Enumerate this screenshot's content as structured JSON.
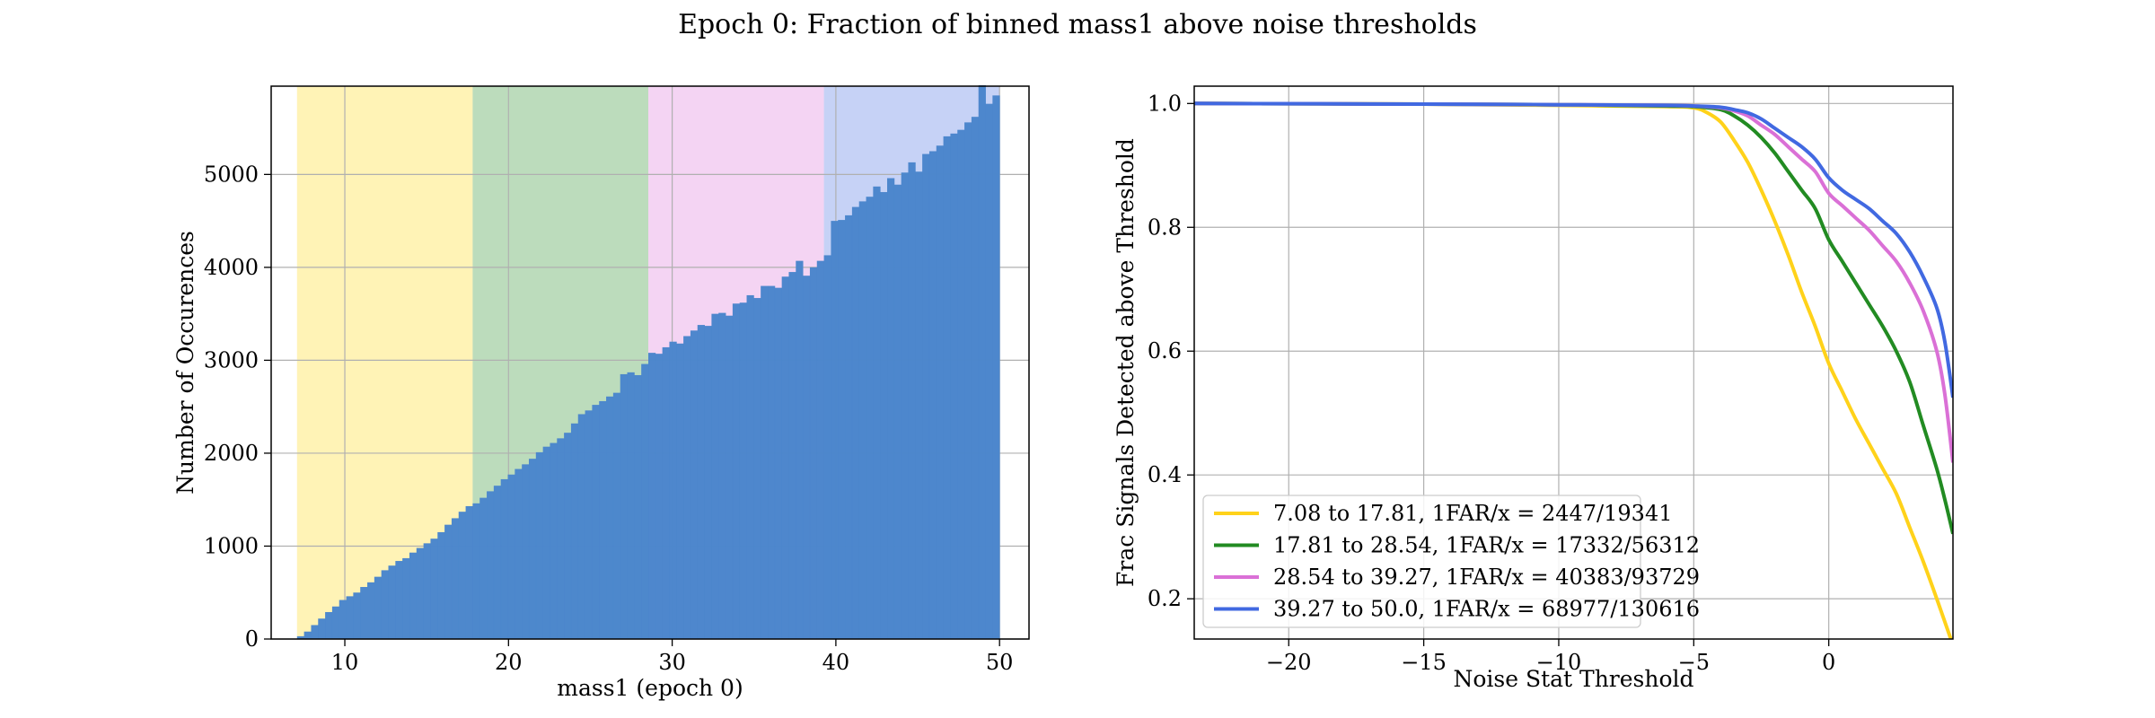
{
  "figure": {
    "suptitle": "Epoch 0: Fraction of binned mass1 above noise thresholds"
  },
  "chart_data": [
    {
      "type": "bar",
      "subtype": "histogram",
      "xlabel": "mass1 (epoch 0)",
      "ylabel": "Number of Occurences",
      "xlim": [
        5.5,
        51.8
      ],
      "ylim": [
        0,
        5950
      ],
      "xticks": [
        10,
        20,
        30,
        40,
        50
      ],
      "yticks": [
        0,
        1000,
        2000,
        3000,
        4000,
        5000
      ],
      "grid": true,
      "bar_color": "#4a86cc",
      "bin_edges_range": [
        7.08,
        50.0
      ],
      "n_bins": 100,
      "counts": [
        30,
        80,
        150,
        220,
        290,
        350,
        420,
        460,
        500,
        560,
        610,
        670,
        740,
        790,
        840,
        870,
        930,
        980,
        1030,
        1080,
        1150,
        1230,
        1300,
        1370,
        1430,
        1460,
        1520,
        1590,
        1650,
        1720,
        1770,
        1830,
        1880,
        1940,
        2010,
        2070,
        2110,
        2160,
        2220,
        2320,
        2420,
        2460,
        2520,
        2560,
        2610,
        2650,
        2850,
        2870,
        2840,
        2960,
        3080,
        3070,
        3140,
        3200,
        3180,
        3260,
        3320,
        3380,
        3370,
        3500,
        3510,
        3480,
        3610,
        3620,
        3700,
        3670,
        3800,
        3800,
        3780,
        3900,
        3950,
        4070,
        3910,
        4000,
        4070,
        4130,
        4500,
        4510,
        4560,
        4650,
        4710,
        4760,
        4870,
        4810,
        4960,
        4890,
        5020,
        5130,
        5030,
        5220,
        5250,
        5310,
        5410,
        5440,
        5480,
        5560,
        5620,
        5960,
        5760,
        5850
      ],
      "bands": [
        {
          "from": 7.08,
          "to": 17.81,
          "color": "#ffe97a",
          "alpha": 0.55
        },
        {
          "from": 17.81,
          "to": 28.54,
          "color": "#228b22",
          "alpha": 0.3
        },
        {
          "from": 28.54,
          "to": 39.27,
          "color": "#da70d6",
          "alpha": 0.3
        },
        {
          "from": 39.27,
          "to": 50.0,
          "color": "#4169e1",
          "alpha": 0.3
        }
      ]
    },
    {
      "type": "line",
      "xlabel": "Noise Stat Threshold",
      "ylabel": "Frac Signals Detected above Threshold",
      "xlim": [
        -23.5,
        4.6
      ],
      "ylim": [
        0.135,
        1.028
      ],
      "xticks": [
        -20,
        -15,
        -10,
        -5,
        0
      ],
      "xtick_labels": [
        "−20",
        "−15",
        "−10",
        "−5",
        "0"
      ],
      "yticks": [
        0.2,
        0.4,
        0.6,
        0.8,
        1.0
      ],
      "ytick_labels": [
        "0.2",
        "0.4",
        "0.6",
        "0.8",
        "1.0"
      ],
      "grid": true,
      "legend_position": "lower-left",
      "series": [
        {
          "name": "7.08 to 17.81, 1FAR/x = 2447/19341",
          "color": "#ffd21a",
          "x": [
            -23.5,
            -15,
            -10,
            -6,
            -5,
            -4.5,
            -4,
            -3.5,
            -3,
            -2.5,
            -2,
            -1.5,
            -1,
            -0.5,
            0,
            0.5,
            1,
            1.5,
            2,
            2.5,
            3,
            3.5,
            4,
            4.6
          ],
          "y": [
            1.0,
            0.999,
            0.997,
            0.995,
            0.993,
            0.985,
            0.97,
            0.94,
            0.905,
            0.86,
            0.81,
            0.755,
            0.695,
            0.64,
            0.58,
            0.535,
            0.49,
            0.45,
            0.41,
            0.37,
            0.315,
            0.26,
            0.2,
            0.125
          ]
        },
        {
          "name": "17.81 to 28.54, 1FAR/x = 17332/56312",
          "color": "#228b22",
          "x": [
            -23.5,
            -15,
            -10,
            -6,
            -5,
            -4,
            -3.5,
            -3,
            -2.5,
            -2,
            -1.5,
            -1,
            -0.5,
            0,
            0.5,
            1,
            1.5,
            2,
            2.5,
            3,
            3.5,
            4,
            4.3,
            4.6
          ],
          "y": [
            1.0,
            0.999,
            0.998,
            0.996,
            0.995,
            0.99,
            0.98,
            0.965,
            0.945,
            0.92,
            0.89,
            0.86,
            0.83,
            0.78,
            0.745,
            0.71,
            0.675,
            0.64,
            0.6,
            0.55,
            0.48,
            0.41,
            0.36,
            0.305
          ]
        },
        {
          "name": "28.54 to 39.27, 1FAR/x = 40383/93729",
          "color": "#da70d6",
          "x": [
            -23.5,
            -15,
            -10,
            -6,
            -5,
            -4,
            -3.5,
            -3,
            -2.5,
            -2,
            -1.5,
            -1,
            -0.5,
            0,
            0.5,
            1,
            1.5,
            2,
            2.5,
            3,
            3.5,
            4,
            4.3,
            4.6
          ],
          "y": [
            1.0,
            0.999,
            0.998,
            0.997,
            0.996,
            0.993,
            0.988,
            0.98,
            0.965,
            0.95,
            0.93,
            0.91,
            0.89,
            0.855,
            0.835,
            0.815,
            0.795,
            0.77,
            0.745,
            0.71,
            0.665,
            0.6,
            0.53,
            0.42
          ]
        },
        {
          "name": "39.27 to 50.0, 1FAR/x = 68977/130616",
          "color": "#4169e1",
          "x": [
            -23.5,
            -15,
            -10,
            -6,
            -5,
            -4,
            -3.5,
            -3,
            -2.5,
            -2,
            -1.5,
            -1,
            -0.5,
            0,
            0.5,
            1,
            1.5,
            2,
            2.5,
            3,
            3.5,
            4,
            4.3,
            4.6
          ],
          "y": [
            1.0,
            0.999,
            0.998,
            0.997,
            0.996,
            0.994,
            0.99,
            0.985,
            0.975,
            0.96,
            0.945,
            0.93,
            0.91,
            0.88,
            0.86,
            0.845,
            0.83,
            0.81,
            0.79,
            0.76,
            0.72,
            0.67,
            0.615,
            0.525
          ]
        }
      ]
    }
  ]
}
